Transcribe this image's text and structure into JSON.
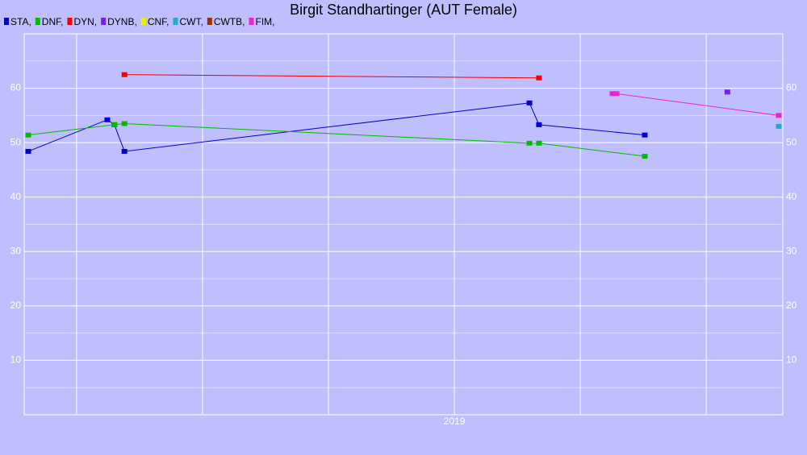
{
  "chart_data": {
    "type": "line",
    "title": "Birgit Standhartinger (AUT Female)",
    "series": [
      {
        "name": "STA,",
        "color": "#0000cc",
        "x": [
          2018.154,
          2018.311,
          2018.325,
          2018.345,
          2019.149,
          2019.168,
          2019.378
        ],
        "values": [
          48.4,
          54.2,
          53.3,
          48.4,
          57.3,
          53.3,
          51.4
        ]
      },
      {
        "name": "DNF,",
        "color": "#00bb00",
        "x": [
          2018.154,
          2018.325,
          2018.345,
          2019.149,
          2019.168,
          2019.378
        ],
        "values": [
          51.4,
          53.3,
          53.5,
          49.9,
          49.9,
          47.5
        ]
      },
      {
        "name": "DYN,",
        "color": "#ee0000",
        "x": [
          2018.345,
          2019.168
        ],
        "values": [
          62.5,
          61.9
        ]
      },
      {
        "name": "DYNB,",
        "color": "#7a1fe6",
        "x": [
          2019.542
        ],
        "values": [
          59.3
        ]
      },
      {
        "name": "CNF,",
        "color": "#eeee00",
        "x": [],
        "values": []
      },
      {
        "name": "CWT,",
        "color": "#22aacc",
        "x": [
          2019.644
        ],
        "values": [
          53.0
        ]
      },
      {
        "name": "CWTB,",
        "color": "#993300",
        "x": [],
        "values": []
      },
      {
        "name": "FIM,",
        "color": "#ee22cc",
        "x": [
          2019.314,
          2019.322,
          2019.644
        ],
        "values": [
          59.0,
          59.0,
          55.0
        ]
      }
    ],
    "xlim": [
      2018.146,
      2019.652
    ],
    "xticks": [
      {
        "value": 2018.25,
        "label": null
      },
      {
        "value": 2018.5,
        "label": null
      },
      {
        "value": 2018.75,
        "label": null
      },
      2019,
      {
        "value": 2019.25,
        "label": null
      },
      {
        "value": 2019.5,
        "label": null
      },
      {
        "value": 2019.75,
        "label": null
      }
    ],
    "ylim": [
      0,
      70
    ],
    "yticks": [
      10,
      20,
      30,
      40,
      50,
      60
    ],
    "yminor": [
      5,
      15,
      25,
      35,
      45,
      55,
      65
    ],
    "grid": true
  }
}
